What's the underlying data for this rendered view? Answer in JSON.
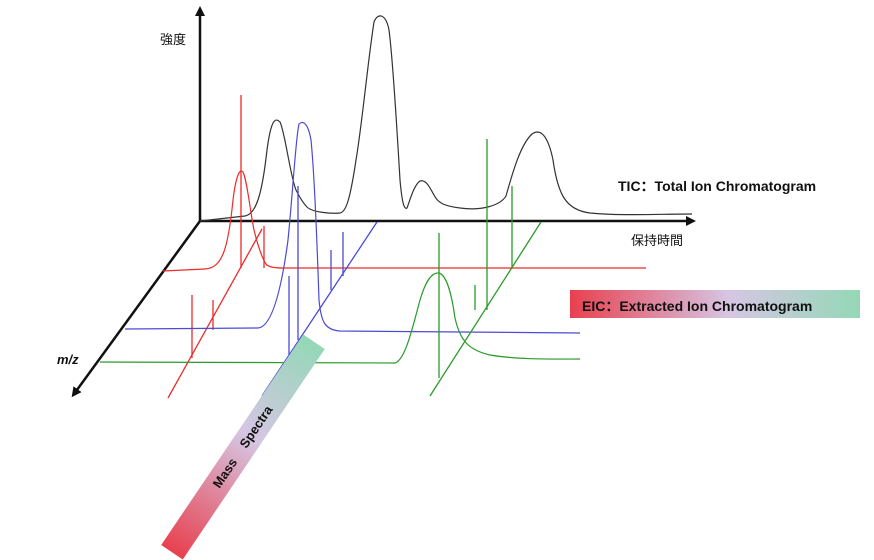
{
  "labels": {
    "y_axis": "強度",
    "x_axis": "保持時間",
    "depth_axis": "m/z",
    "tic": "TIC：Total Ion Chromatogram",
    "eic": "EIC：Extracted Ion Chromatogram",
    "mass_spectra": "Mass  Spectra"
  },
  "colors": {
    "axis": "#111111",
    "tic": "#333333",
    "eic_red": "#ee2a2a",
    "eic_blue": "#4a4ad6",
    "eic_green": "#2a9a2a"
  }
}
